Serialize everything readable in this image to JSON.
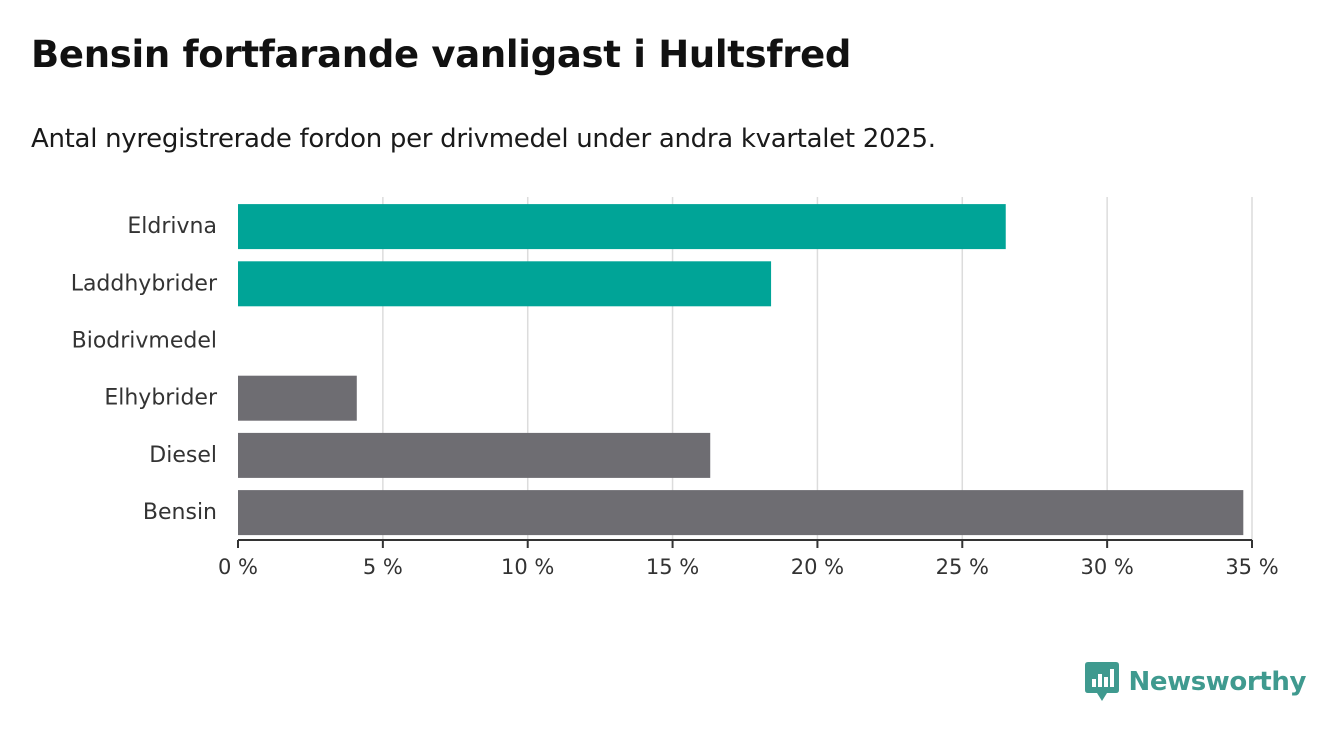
{
  "header": {
    "title": "Bensin fortfarande vanligast i Hultsfred",
    "subtitle": "Antal nyregistrerade fordon per drivmedel under andra kvartalet 2025."
  },
  "brand": {
    "name": "Newsworthy",
    "color": "#3f9a8f",
    "icon": "newsworthy-logo-icon"
  },
  "colors": {
    "highlight": "#00a497",
    "base": "#6e6d72",
    "grid": "#dcdcdc",
    "axis": "#333333"
  },
  "chart_data": {
    "type": "bar",
    "orientation": "horizontal",
    "categories": [
      "Eldrivna",
      "Laddhybrider",
      "Biodrivmedel",
      "Elhybrider",
      "Diesel",
      "Bensin"
    ],
    "values": [
      26.5,
      18.4,
      0,
      4.1,
      16.3,
      34.7
    ],
    "highlighted": [
      true,
      true,
      false,
      false,
      false,
      false
    ],
    "xlim": [
      0,
      35
    ],
    "xticks": [
      0,
      5,
      10,
      15,
      20,
      25,
      30,
      35
    ],
    "xtick_labels": [
      "0 %",
      "5 %",
      "10 %",
      "15 %",
      "20 %",
      "25 %",
      "30 %",
      "35 %"
    ],
    "xlabel": "",
    "ylabel": "",
    "grid": true,
    "legend": "none"
  }
}
